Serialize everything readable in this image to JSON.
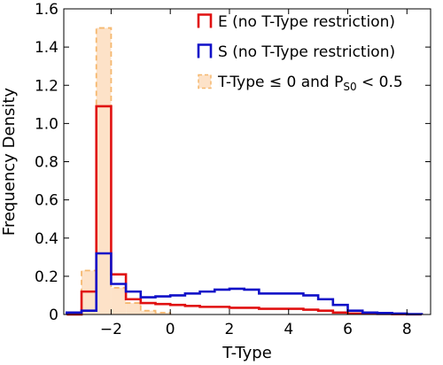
{
  "chart_data": {
    "type": "histogram",
    "xlabel": "T-Type",
    "ylabel": "Frequency Density",
    "xlim": [
      -3.6,
      8.8
    ],
    "ylim": [
      0,
      1.6
    ],
    "xticks": [
      -2,
      0,
      2,
      4,
      6,
      8
    ],
    "xtick_labels": [
      "−2",
      "0",
      "2",
      "4",
      "6",
      "8"
    ],
    "yticks": [
      0,
      0.2,
      0.4,
      0.6,
      0.8,
      1.0,
      1.2,
      1.4,
      1.6
    ],
    "ytick_labels": [
      "0",
      "0.2",
      "0.4",
      "0.6",
      "0.8",
      "1.0",
      "1.2",
      "1.4",
      "1.6"
    ],
    "bin_edges": [
      -3.5,
      -3.0,
      -2.5,
      -2.0,
      -1.5,
      -1.0,
      -0.5,
      0.0,
      0.5,
      1.0,
      1.5,
      2.0,
      2.5,
      3.0,
      3.5,
      4.0,
      4.5,
      5.0,
      5.5,
      6.0,
      6.5,
      7.0,
      7.5,
      8.0,
      8.5
    ],
    "legend_position": "top-right",
    "series": [
      {
        "name": "T-Type ≤ 0 and P",
        "name_sub": "S0",
        "name_suffix": " < 0.5",
        "style": "filled-dashed",
        "color": "#f5b86f",
        "fill": "#fde2c8",
        "values": [
          0,
          0.23,
          1.5,
          0.14,
          0.06,
          0.02,
          0.01
        ]
      },
      {
        "name": "E (no T-Type restriction)",
        "style": "step",
        "color": "#e01010",
        "values": [
          0,
          0.12,
          1.09,
          0.21,
          0.08,
          0.06,
          0.055,
          0.05,
          0.045,
          0.04,
          0.04,
          0.035,
          0.035,
          0.03,
          0.03,
          0.03,
          0.025,
          0.02,
          0.01,
          0.005,
          0.005,
          0.003,
          0.002,
          0.001
        ]
      },
      {
        "name": "S (no T-Type restriction)",
        "style": "step",
        "color": "#1010c8",
        "values": [
          0.01,
          0.02,
          0.32,
          0.16,
          0.12,
          0.09,
          0.095,
          0.1,
          0.11,
          0.12,
          0.13,
          0.135,
          0.13,
          0.11,
          0.11,
          0.11,
          0.1,
          0.08,
          0.05,
          0.02,
          0.01,
          0.008,
          0.005,
          0.002
        ]
      }
    ],
    "legend_order": [
      1,
      2,
      0
    ]
  }
}
